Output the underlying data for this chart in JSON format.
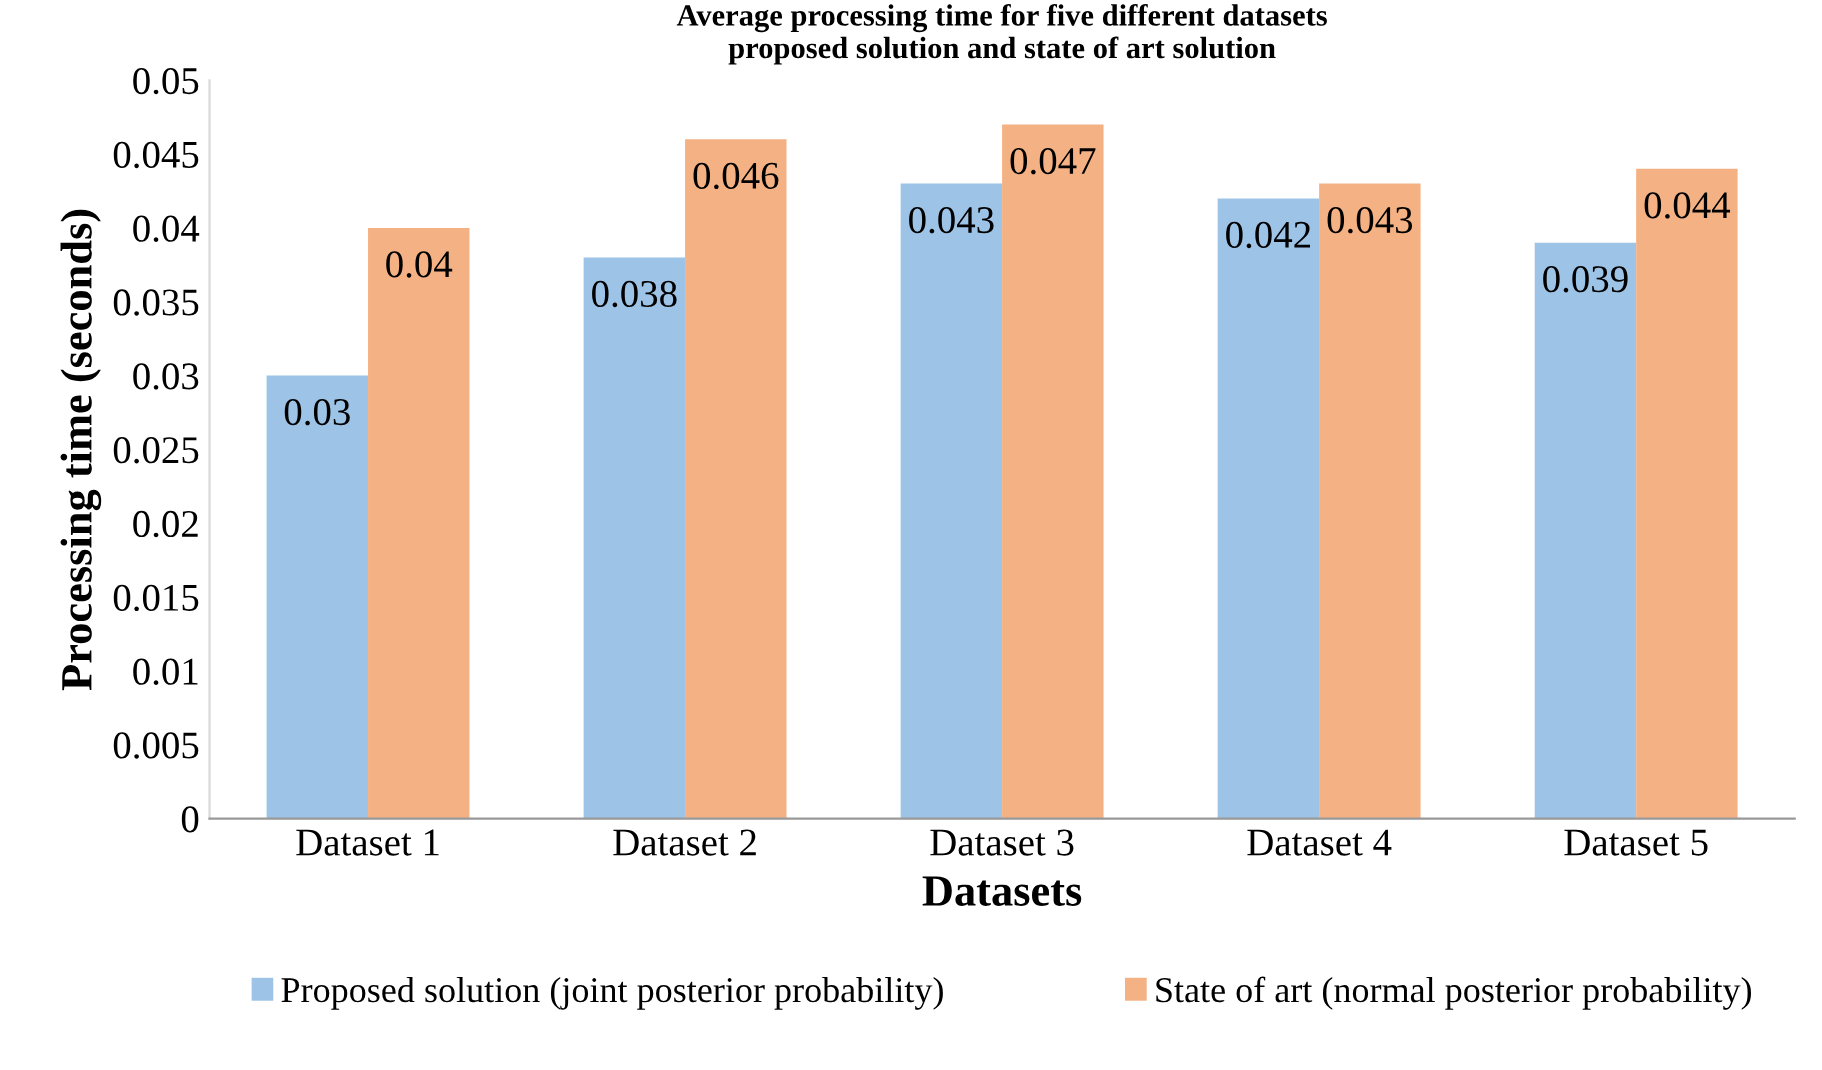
{
  "chart_data": {
    "type": "bar",
    "title": "Average processing time for five different datasets\nproposed solution and state of art solution",
    "xlabel": "Datasets",
    "ylabel": "Processing time (seconds)",
    "categories": [
      "Dataset 1",
      "Dataset 2",
      "Dataset 3",
      "Dataset 4",
      "Dataset 5"
    ],
    "series": [
      {
        "name": "Proposed solution (joint posterior probability)",
        "color": "#9dc3e6",
        "values": [
          0.03,
          0.038,
          0.043,
          0.042,
          0.039
        ]
      },
      {
        "name": "State of art (normal posterior probability)",
        "color": "#f4b183",
        "values": [
          0.04,
          0.046,
          0.047,
          0.043,
          0.044
        ]
      }
    ],
    "ylim": [
      0,
      0.05
    ],
    "yticks": [
      0,
      0.005,
      0.01,
      0.015,
      0.02,
      0.025,
      0.03,
      0.035,
      0.04,
      0.045,
      0.05
    ],
    "grid": false,
    "legend": "bottom",
    "data_labels": true
  }
}
